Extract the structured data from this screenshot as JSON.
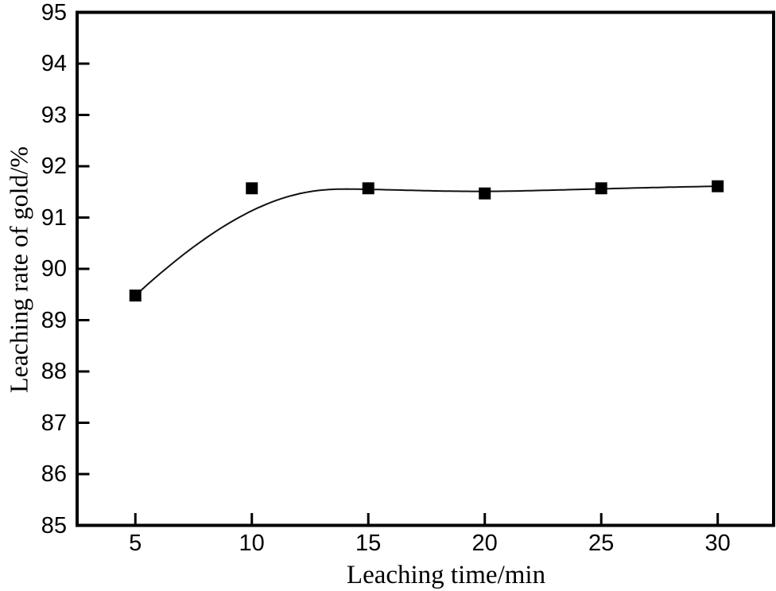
{
  "chart_data": {
    "type": "line",
    "title": "",
    "xlabel": "Leaching time/min",
    "ylabel": "Leaching rate of gold/%",
    "x": [
      5,
      10,
      15,
      20,
      25,
      30
    ],
    "series": [
      {
        "name": "Leaching rate of gold",
        "values": [
          89.48,
          91.57,
          91.57,
          91.47,
          91.57,
          91.61
        ],
        "marker": "filled-square",
        "line_style": "smooth-spline"
      }
    ],
    "x_ticks": [
      5,
      10,
      15,
      20,
      25,
      30
    ],
    "y_ticks": [
      85,
      86,
      87,
      88,
      89,
      90,
      91,
      92,
      93,
      94,
      95
    ],
    "xlim": [
      2.5,
      32.4
    ],
    "ylim": [
      85,
      95
    ],
    "grid": false,
    "legend": "none",
    "axes_box": "full-frame-with-inward-ticks",
    "colors": {
      "background": "#ffffff",
      "axis": "#000000",
      "line": "#111111",
      "marker": "#000000",
      "text": "#000000"
    }
  }
}
